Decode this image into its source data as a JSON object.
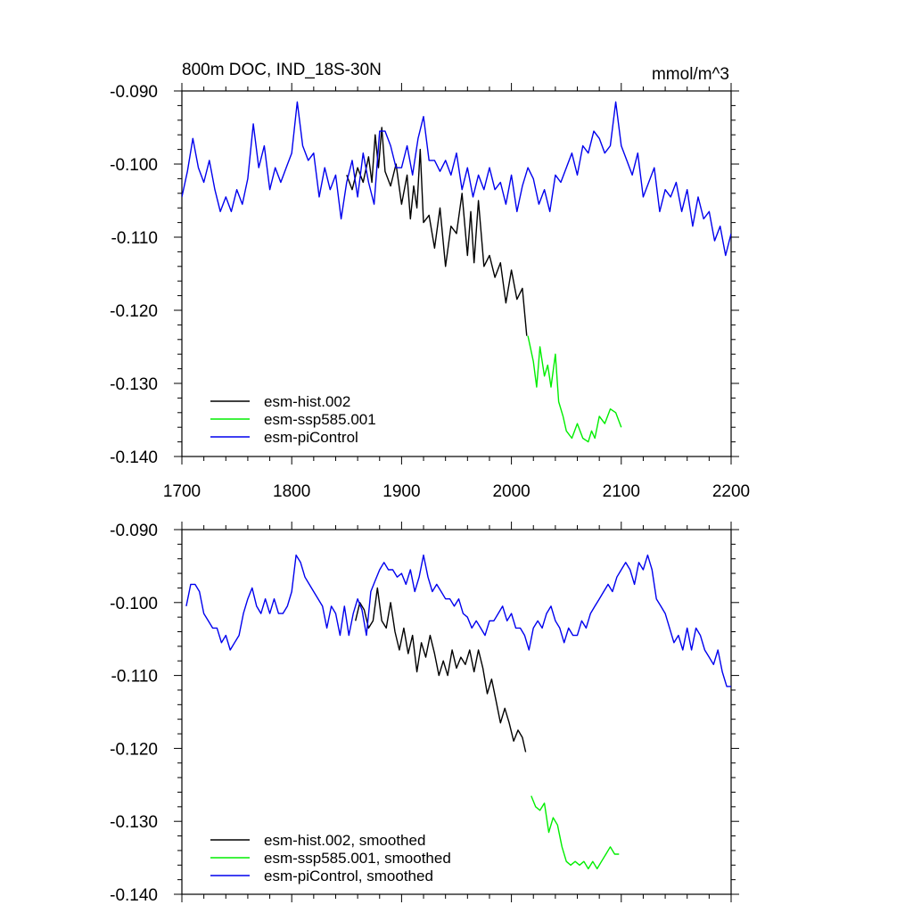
{
  "chart_data": [
    {
      "type": "line",
      "title": "800m DOC, IND_18S-30N",
      "units": "mmol/m^3",
      "xlim": [
        1700,
        2200
      ],
      "ylim": [
        -0.14,
        -0.09
      ],
      "xticks": [
        1700,
        1800,
        1900,
        2000,
        2100,
        2200
      ],
      "xtick_labels": [
        "1700",
        "1800",
        "1900",
        "2000",
        "2100",
        "2200"
      ],
      "yticks": [
        -0.09,
        -0.1,
        -0.11,
        -0.12,
        -0.13,
        -0.14
      ],
      "ytick_labels": [
        "-0.090",
        "-0.100",
        "-0.110",
        "-0.120",
        "-0.130",
        "-0.140"
      ],
      "legend_position": "bottom-left",
      "series": [
        {
          "name": "esm-hist.002",
          "color": "#000000",
          "x": [
            1850,
            1855,
            1860,
            1865,
            1870,
            1873,
            1876,
            1879,
            1882,
            1885,
            1890,
            1895,
            1900,
            1905,
            1908,
            1911,
            1914,
            1917,
            1920,
            1925,
            1930,
            1935,
            1940,
            1945,
            1950,
            1955,
            1960,
            1963,
            1966,
            1970,
            1975,
            1980,
            1985,
            1990,
            1995,
            2000,
            2005,
            2010,
            2014
          ],
          "values": [
            -0.1015,
            -0.1035,
            -0.1005,
            -0.1025,
            -0.099,
            -0.1025,
            -0.096,
            -0.1005,
            -0.095,
            -0.101,
            -0.103,
            -0.1,
            -0.1055,
            -0.1015,
            -0.1075,
            -0.103,
            -0.106,
            -0.098,
            -0.108,
            -0.107,
            -0.1115,
            -0.106,
            -0.114,
            -0.1085,
            -0.1095,
            -0.104,
            -0.1125,
            -0.1065,
            -0.1135,
            -0.105,
            -0.114,
            -0.1125,
            -0.1155,
            -0.1135,
            -0.119,
            -0.1145,
            -0.1185,
            -0.117,
            -0.1235
          ]
        },
        {
          "name": "esm-ssp585.001",
          "color": "#00ee00",
          "x": [
            2015,
            2020,
            2023,
            2026,
            2030,
            2033,
            2036,
            2040,
            2043,
            2047,
            2050,
            2055,
            2060,
            2065,
            2070,
            2073,
            2076,
            2080,
            2085,
            2090,
            2095,
            2100
          ],
          "values": [
            -0.1235,
            -0.127,
            -0.1305,
            -0.125,
            -0.129,
            -0.1275,
            -0.1305,
            -0.126,
            -0.1325,
            -0.1345,
            -0.1365,
            -0.1375,
            -0.1355,
            -0.1375,
            -0.138,
            -0.1365,
            -0.1375,
            -0.1345,
            -0.1355,
            -0.1335,
            -0.134,
            -0.136
          ]
        },
        {
          "name": "esm-piControl",
          "color": "#0000ee",
          "x": [
            1700,
            1705,
            1710,
            1715,
            1720,
            1725,
            1730,
            1735,
            1740,
            1745,
            1750,
            1755,
            1760,
            1765,
            1770,
            1775,
            1780,
            1785,
            1790,
            1795,
            1800,
            1805,
            1810,
            1815,
            1820,
            1825,
            1830,
            1835,
            1840,
            1845,
            1850,
            1855,
            1860,
            1865,
            1870,
            1875,
            1880,
            1885,
            1890,
            1895,
            1900,
            1905,
            1910,
            1915,
            1920,
            1925,
            1930,
            1935,
            1940,
            1945,
            1950,
            1955,
            1960,
            1965,
            1970,
            1975,
            1980,
            1985,
            1990,
            1995,
            2000,
            2005,
            2010,
            2015,
            2020,
            2025,
            2030,
            2035,
            2040,
            2045,
            2050,
            2055,
            2060,
            2065,
            2070,
            2075,
            2080,
            2085,
            2090,
            2095,
            2100,
            2105,
            2110,
            2115,
            2120,
            2125,
            2130,
            2135,
            2140,
            2145,
            2150,
            2155,
            2160,
            2165,
            2170,
            2175,
            2180,
            2185,
            2190,
            2195,
            2200
          ],
          "values": [
            -0.1045,
            -0.101,
            -0.0965,
            -0.1005,
            -0.1025,
            -0.0995,
            -0.1035,
            -0.1065,
            -0.1045,
            -0.1065,
            -0.1035,
            -0.1055,
            -0.102,
            -0.0945,
            -0.1005,
            -0.0975,
            -0.1035,
            -0.1005,
            -0.1025,
            -0.1005,
            -0.0985,
            -0.0915,
            -0.0975,
            -0.0995,
            -0.0985,
            -0.1045,
            -0.1005,
            -0.1035,
            -0.1015,
            -0.1075,
            -0.1025,
            -0.0995,
            -0.1045,
            -0.0985,
            -0.1025,
            -0.1055,
            -0.0955,
            -0.0955,
            -0.0975,
            -0.1005,
            -0.1005,
            -0.0975,
            -0.1015,
            -0.0965,
            -0.0935,
            -0.0995,
            -0.0995,
            -0.101,
            -0.0995,
            -0.1015,
            -0.0985,
            -0.1035,
            -0.1005,
            -0.1045,
            -0.1015,
            -0.1035,
            -0.1005,
            -0.1035,
            -0.1025,
            -0.1055,
            -0.1015,
            -0.1065,
            -0.103,
            -0.1005,
            -0.102,
            -0.1055,
            -0.1035,
            -0.1065,
            -0.1015,
            -0.1025,
            -0.1005,
            -0.0985,
            -0.1015,
            -0.0975,
            -0.0985,
            -0.0955,
            -0.0965,
            -0.0985,
            -0.0975,
            -0.0915,
            -0.0975,
            -0.0995,
            -0.1015,
            -0.0985,
            -0.1045,
            -0.1025,
            -0.1005,
            -0.1065,
            -0.1035,
            -0.1045,
            -0.1025,
            -0.1065,
            -0.1035,
            -0.1085,
            -0.1045,
            -0.1075,
            -0.1065,
            -0.1105,
            -0.1085,
            -0.1125,
            -0.1095
          ]
        }
      ]
    },
    {
      "type": "line",
      "title": "",
      "xlim": [
        1700,
        2200
      ],
      "ylim": [
        -0.14,
        -0.09
      ],
      "xticks": [
        1700,
        1800,
        1900,
        2000,
        2100,
        2200
      ],
      "yticks": [
        -0.09,
        -0.1,
        -0.11,
        -0.12,
        -0.13,
        -0.14
      ],
      "ytick_labels": [
        "-0.090",
        "-0.100",
        "-0.110",
        "-0.120",
        "-0.130",
        "-0.140"
      ],
      "legend_position": "bottom-left",
      "series": [
        {
          "name": "esm-hist.002, smoothed",
          "color": "#000000",
          "x": [
            1858,
            1862,
            1866,
            1870,
            1874,
            1878,
            1882,
            1886,
            1890,
            1894,
            1898,
            1902,
            1906,
            1910,
            1914,
            1918,
            1922,
            1926,
            1930,
            1934,
            1938,
            1942,
            1946,
            1950,
            1954,
            1958,
            1962,
            1966,
            1970,
            1974,
            1978,
            1982,
            1986,
            1990,
            1994,
            1998,
            2002,
            2006,
            2010,
            2013
          ],
          "values": [
            -0.1025,
            -0.1,
            -0.101,
            -0.1035,
            -0.1025,
            -0.098,
            -0.1025,
            -0.1035,
            -0.1,
            -0.104,
            -0.1065,
            -0.1035,
            -0.107,
            -0.1045,
            -0.1095,
            -0.1055,
            -0.1075,
            -0.1045,
            -0.107,
            -0.11,
            -0.108,
            -0.11,
            -0.1065,
            -0.109,
            -0.1075,
            -0.1085,
            -0.1065,
            -0.1095,
            -0.1065,
            -0.109,
            -0.1125,
            -0.1105,
            -0.1135,
            -0.1165,
            -0.1145,
            -0.1165,
            -0.119,
            -0.1175,
            -0.1185,
            -0.1205
          ]
        },
        {
          "name": "esm-ssp585.001, smoothed",
          "color": "#00ee00",
          "x": [
            2018,
            2022,
            2026,
            2030,
            2034,
            2038,
            2042,
            2046,
            2050,
            2054,
            2058,
            2062,
            2066,
            2070,
            2074,
            2078,
            2082,
            2086,
            2090,
            2094,
            2098
          ],
          "values": [
            -0.1265,
            -0.128,
            -0.1285,
            -0.1275,
            -0.1315,
            -0.1295,
            -0.1305,
            -0.1335,
            -0.1355,
            -0.136,
            -0.1355,
            -0.136,
            -0.1355,
            -0.1365,
            -0.1355,
            -0.1365,
            -0.1355,
            -0.1345,
            -0.1335,
            -0.1345,
            -0.1345
          ]
        },
        {
          "name": "esm-piControl, smoothed",
          "color": "#0000ee",
          "x": [
            1704,
            1708,
            1712,
            1716,
            1720,
            1724,
            1728,
            1732,
            1736,
            1740,
            1744,
            1748,
            1752,
            1756,
            1760,
            1764,
            1768,
            1772,
            1776,
            1780,
            1784,
            1788,
            1792,
            1796,
            1800,
            1804,
            1808,
            1812,
            1816,
            1820,
            1824,
            1828,
            1832,
            1836,
            1840,
            1844,
            1848,
            1852,
            1856,
            1860,
            1864,
            1868,
            1872,
            1876,
            1880,
            1884,
            1888,
            1892,
            1896,
            1900,
            1904,
            1908,
            1912,
            1916,
            1920,
            1924,
            1928,
            1932,
            1936,
            1940,
            1944,
            1948,
            1952,
            1956,
            1960,
            1964,
            1968,
            1972,
            1976,
            1980,
            1984,
            1988,
            1992,
            1996,
            2000,
            2004,
            2008,
            2012,
            2016,
            2020,
            2024,
            2028,
            2032,
            2036,
            2040,
            2044,
            2048,
            2052,
            2056,
            2060,
            2064,
            2068,
            2072,
            2076,
            2080,
            2084,
            2088,
            2092,
            2096,
            2100,
            2104,
            2108,
            2112,
            2116,
            2120,
            2124,
            2128,
            2132,
            2136,
            2140,
            2144,
            2148,
            2152,
            2156,
            2160,
            2164,
            2168,
            2172,
            2176,
            2180,
            2184,
            2188,
            2192,
            2196,
            2200
          ],
          "values": [
            -0.1005,
            -0.0975,
            -0.0975,
            -0.0985,
            -0.1015,
            -0.1025,
            -0.1035,
            -0.1035,
            -0.1055,
            -0.1045,
            -0.1065,
            -0.1055,
            -0.1045,
            -0.1015,
            -0.0995,
            -0.098,
            -0.1005,
            -0.1015,
            -0.0995,
            -0.1015,
            -0.0995,
            -0.1015,
            -0.1015,
            -0.1005,
            -0.0985,
            -0.0935,
            -0.0945,
            -0.0965,
            -0.0975,
            -0.0985,
            -0.0995,
            -0.1005,
            -0.1035,
            -0.1005,
            -0.1015,
            -0.1045,
            -0.1005,
            -0.1045,
            -0.1015,
            -0.0995,
            -0.101,
            -0.1045,
            -0.0985,
            -0.097,
            -0.0955,
            -0.0945,
            -0.0955,
            -0.0955,
            -0.0965,
            -0.096,
            -0.0975,
            -0.0955,
            -0.0985,
            -0.0965,
            -0.0935,
            -0.0965,
            -0.0985,
            -0.0975,
            -0.0985,
            -0.0995,
            -0.0995,
            -0.1005,
            -0.0995,
            -0.1015,
            -0.102,
            -0.1035,
            -0.1025,
            -0.1035,
            -0.1045,
            -0.1025,
            -0.1025,
            -0.1015,
            -0.1005,
            -0.1025,
            -0.1015,
            -0.1035,
            -0.1035,
            -0.1045,
            -0.1065,
            -0.1035,
            -0.1025,
            -0.1035,
            -0.1015,
            -0.1005,
            -0.1025,
            -0.1035,
            -0.1055,
            -0.1035,
            -0.1045,
            -0.1045,
            -0.1025,
            -0.1035,
            -0.1015,
            -0.1005,
            -0.0995,
            -0.0985,
            -0.0975,
            -0.0985,
            -0.0965,
            -0.0955,
            -0.0945,
            -0.0955,
            -0.0975,
            -0.0945,
            -0.0955,
            -0.0935,
            -0.0955,
            -0.0995,
            -0.1005,
            -0.1015,
            -0.1035,
            -0.1055,
            -0.1045,
            -0.1065,
            -0.1035,
            -0.1065,
            -0.1035,
            -0.1045,
            -0.1065,
            -0.1075,
            -0.1085,
            -0.1065,
            -0.1095,
            -0.1115,
            -0.1115
          ]
        }
      ]
    }
  ]
}
